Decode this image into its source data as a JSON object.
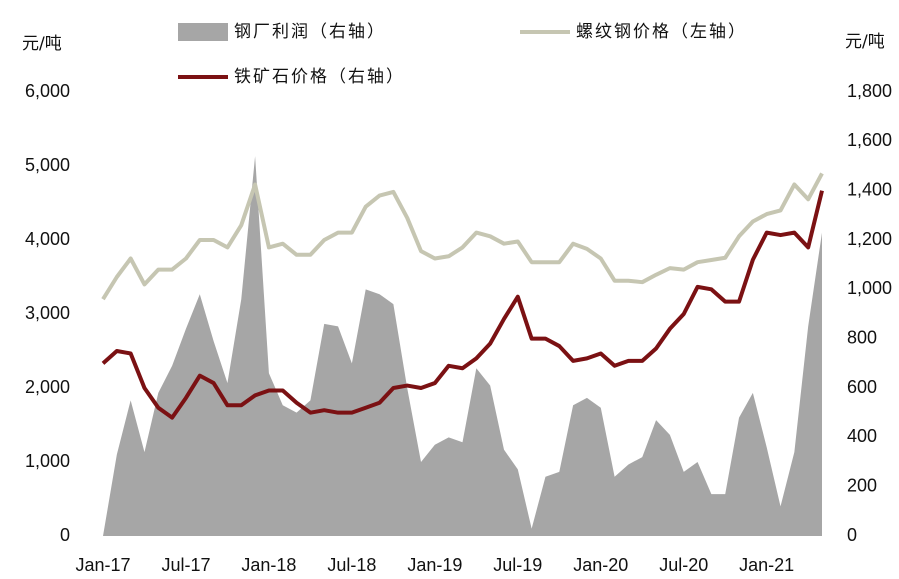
{
  "chart_data": {
    "type": "combo",
    "y_label": "元/吨",
    "y2_label": "元/吨",
    "categories": [
      "Jan-17",
      null,
      null,
      null,
      null,
      null,
      "Jul-17",
      null,
      null,
      null,
      null,
      null,
      "Jan-18",
      null,
      null,
      null,
      null,
      null,
      "Jul-18",
      null,
      null,
      null,
      null,
      null,
      "Jan-19",
      null,
      null,
      null,
      null,
      null,
      "Jul-19",
      null,
      null,
      null,
      null,
      null,
      "Jan-20",
      null,
      null,
      null,
      null,
      null,
      "Jul-20",
      null,
      null,
      null,
      null,
      null,
      "Jan-21",
      null,
      null,
      null,
      null
    ],
    "series": [
      {
        "name": "钢厂利润（右轴）",
        "kind": "area",
        "axis": "y2",
        "color": "#a6a6a6",
        "values": [
          0,
          330,
          550,
          340,
          580,
          690,
          840,
          980,
          790,
          620,
          960,
          1540,
          660,
          530,
          500,
          550,
          860,
          850,
          700,
          1000,
          980,
          940,
          600,
          300,
          370,
          400,
          380,
          680,
          610,
          350,
          270,
          30,
          240,
          260,
          530,
          560,
          520,
          240,
          290,
          320,
          470,
          410,
          260,
          300,
          170,
          170,
          480,
          580,
          360,
          120,
          340,
          850,
          1230
        ]
      },
      {
        "name": "螺纹钢价格（左轴）",
        "kind": "line",
        "axis": "y",
        "color": "#c6c6b2",
        "values": [
          3200,
          3500,
          3750,
          3400,
          3600,
          3600,
          3750,
          4000,
          4000,
          3900,
          4200,
          4750,
          3900,
          3950,
          3800,
          3800,
          4000,
          4100,
          4100,
          4450,
          4600,
          4650,
          4300,
          3850,
          3750,
          3780,
          3900,
          4100,
          4050,
          3950,
          3980,
          3700,
          3700,
          3700,
          3950,
          3880,
          3750,
          3450,
          3450,
          3430,
          3530,
          3620,
          3600,
          3700,
          3730,
          3760,
          4050,
          4250,
          4350,
          4400,
          4750,
          4550,
          4900
        ]
      },
      {
        "name": "铁矿石价格（右轴）",
        "kind": "line",
        "axis": "y2",
        "color": "#7b1113",
        "values": [
          700,
          750,
          740,
          600,
          520,
          480,
          560,
          650,
          620,
          530,
          530,
          570,
          590,
          590,
          540,
          500,
          510,
          500,
          500,
          520,
          540,
          600,
          610,
          600,
          620,
          690,
          680,
          720,
          780,
          880,
          970,
          800,
          800,
          770,
          710,
          720,
          740,
          690,
          710,
          710,
          760,
          840,
          900,
          1010,
          1000,
          950,
          950,
          1120,
          1230,
          1220,
          1230,
          1170,
          1400
        ]
      }
    ],
    "ylim": [
      0,
      6000
    ],
    "yticks": [
      0,
      {
        "value": 1000,
        "label": "1,000"
      },
      {
        "value": 2000,
        "label": "2,000"
      },
      {
        "value": 3000,
        "label": "3,000"
      },
      {
        "value": 4000,
        "label": "4,000"
      },
      {
        "value": 5000,
        "label": "5,000"
      },
      {
        "value": 6000,
        "label": "6,000"
      }
    ],
    "y2lim": [
      0,
      1800
    ],
    "y2ticks": [
      0,
      200,
      400,
      600,
      800,
      {
        "value": 1000,
        "label": "1,000"
      },
      {
        "value": 1200,
        "label": "1,200"
      },
      {
        "value": 1400,
        "label": "1,400"
      },
      {
        "value": 1600,
        "label": "1,600"
      },
      {
        "value": 1800,
        "label": "1,800"
      }
    ],
    "grid": false
  }
}
